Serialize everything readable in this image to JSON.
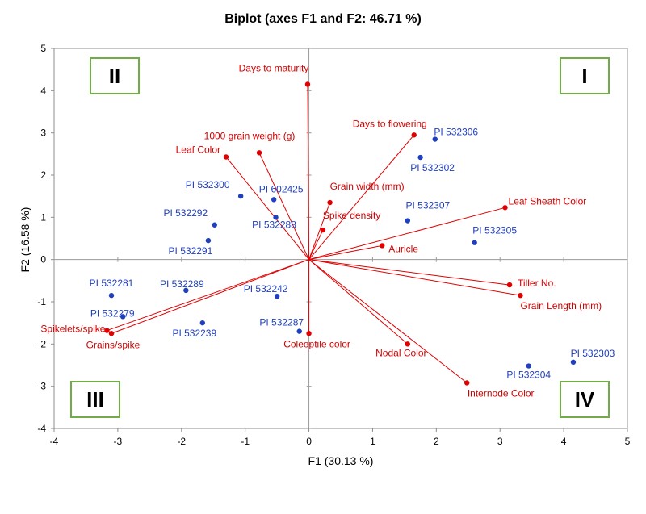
{
  "chart_data": {
    "type": "scatter",
    "title": "Biplot (axes F1 and F2: 46.71 %)",
    "xlabel": "F1 (30.13 %)",
    "ylabel": "F2 (16.58 %)",
    "xlim": [
      -4,
      5
    ],
    "ylim": [
      -4,
      5
    ],
    "xticks": [
      "-4",
      "-3",
      "-2",
      "-1",
      "0",
      "1",
      "2",
      "3",
      "4",
      "5"
    ],
    "yticks": [
      "5",
      "4",
      "3",
      "2",
      "1",
      "0",
      "-1",
      "-2",
      "-3",
      "-4"
    ],
    "grid": false,
    "colors": {
      "variables": "#e00000",
      "observations": "#1f3fbf",
      "quadrant_border": "#70ad47"
    },
    "quadrants": [
      {
        "label": "II",
        "position": "top-left"
      },
      {
        "label": "I",
        "position": "top-right"
      },
      {
        "label": "III",
        "position": "bottom-left"
      },
      {
        "label": "IV",
        "position": "bottom-right"
      }
    ],
    "variables": [
      {
        "name": "Days to maturity",
        "x": -0.02,
        "y": 4.15
      },
      {
        "name": "Days to flowering",
        "x": 1.65,
        "y": 2.95
      },
      {
        "name": "1000 grain weight (g)",
        "x": -0.78,
        "y": 2.53
      },
      {
        "name": "Leaf Color",
        "x": -1.3,
        "y": 2.43
      },
      {
        "name": "Grain width (mm)",
        "x": 0.33,
        "y": 1.35
      },
      {
        "name": "Spike density",
        "x": 0.22,
        "y": 0.7
      },
      {
        "name": "Leaf Sheath Color",
        "x": 3.08,
        "y": 1.23
      },
      {
        "name": "Auricle",
        "x": 1.15,
        "y": 0.33
      },
      {
        "name": "Tiller No.",
        "x": 3.15,
        "y": -0.6
      },
      {
        "name": "Grain Length (mm)",
        "x": 3.32,
        "y": -0.85
      },
      {
        "name": "Nodal Color",
        "x": 1.55,
        "y": -2.0
      },
      {
        "name": "Internode Color",
        "x": 2.48,
        "y": -2.92
      },
      {
        "name": "Coleoptile color",
        "x": 0.0,
        "y": -1.75
      },
      {
        "name": "Spikelets/spike",
        "x": -3.17,
        "y": -1.68
      },
      {
        "name": "Grains/spike",
        "x": -3.1,
        "y": -1.75
      }
    ],
    "observations": [
      {
        "name": "PI 532306",
        "x": 1.98,
        "y": 2.85
      },
      {
        "name": "PI 532302",
        "x": 1.75,
        "y": 2.42
      },
      {
        "name": "PI 532307",
        "x": 1.55,
        "y": 0.92
      },
      {
        "name": "PI 532305",
        "x": 2.6,
        "y": 0.4
      },
      {
        "name": "PI 532300",
        "x": -1.07,
        "y": 1.5
      },
      {
        "name": "PI 602425",
        "x": -0.55,
        "y": 1.42
      },
      {
        "name": "PI 532288",
        "x": -0.52,
        "y": 1.0
      },
      {
        "name": "PI 532292",
        "x": -1.48,
        "y": 0.82
      },
      {
        "name": "PI 532291",
        "x": -1.58,
        "y": 0.45
      },
      {
        "name": "PI 532281",
        "x": -3.1,
        "y": -0.85
      },
      {
        "name": "PI 532289",
        "x": -1.93,
        "y": -0.73
      },
      {
        "name": "PI 532279",
        "x": -2.92,
        "y": -1.35
      },
      {
        "name": "PI 532242",
        "x": -0.5,
        "y": -0.87
      },
      {
        "name": "PI 532239",
        "x": -1.67,
        "y": -1.5
      },
      {
        "name": "PI 532287",
        "x": -0.15,
        "y": -1.7
      },
      {
        "name": "PI 532304",
        "x": 3.45,
        "y": -2.52
      },
      {
        "name": "PI 532303",
        "x": 4.15,
        "y": -2.43
      }
    ]
  }
}
